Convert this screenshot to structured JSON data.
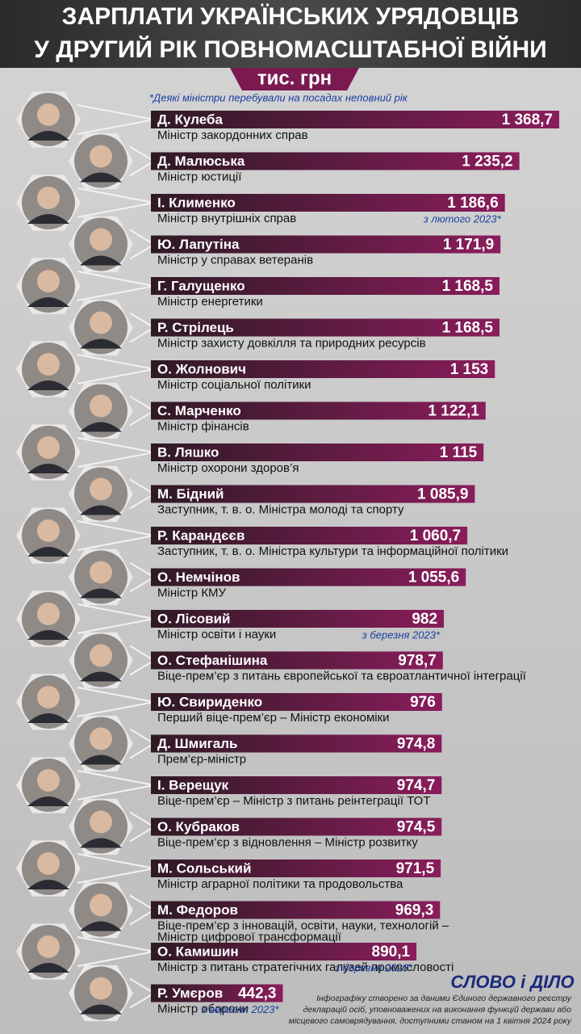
{
  "chart_data": {
    "type": "bar",
    "title": [
      "ЗАРПЛАТИ УКРАЇНСЬКИХ УРЯДОВЦІВ",
      "У ДРУГИЙ РІК ПОВНОМАСШТАБНОЇ ВІЙНИ"
    ],
    "unit": "тис. грн",
    "note": "*Деякі міністри перебували на посадах неповний рік",
    "color": "#8a1d5c",
    "categories": [
      "Д. Кулеба",
      "Д. Малюська",
      "І. Клименко",
      "Ю. Лапутіна",
      "Г. Галущенко",
      "Р. Стрілець",
      "О. Жолнович",
      "С. Марченко",
      "В. Ляшко",
      "М. Бідний",
      "Р. Карандєєв",
      "О. Немчінов",
      "О. Лісовий",
      "О. Стефанішина",
      "Ю. Свириденко",
      "Д. Шмигаль",
      "І. Верещук",
      "О. Кубраков",
      "М. Сольський",
      "М. Федоров",
      "О. Камишин",
      "Р. Умєров"
    ],
    "values": [
      1368.7,
      1235.2,
      1186.6,
      1171.9,
      1168.5,
      1168.5,
      1153,
      1122.1,
      1115,
      1085.9,
      1060.7,
      1055.6,
      982,
      978.7,
      976,
      974.8,
      974.7,
      974.5,
      971.5,
      969.3,
      890.1,
      442.3
    ],
    "value_labels": [
      "1 368,7",
      "1 235,2",
      "1 186,6",
      "1 171,9",
      "1 168,5",
      "1 168,5",
      "1 153",
      "1 122,1",
      "1 115",
      "1 085,9",
      "1 060,7",
      "1 055,6",
      "982",
      "978,7",
      "976",
      "974,8",
      "974,7",
      "974,5",
      "971,5",
      "969,3",
      "890,1",
      "442,3"
    ],
    "roles": [
      [
        "Міністр закордонних справ"
      ],
      [
        "Міністр юстиції"
      ],
      [
        "Міністр внутрішніх справ"
      ],
      [
        "Міністр у справах ветеранів"
      ],
      [
        "Міністр енергетики"
      ],
      [
        "Міністр захисту довкілля та природних ресурсів"
      ],
      [
        "Міністр соціальної політики"
      ],
      [
        "Міністр фінансів"
      ],
      [
        "Міністр охорони здоров’я"
      ],
      [
        "Заступник, т. в. о. Міністра молоді та спорту"
      ],
      [
        "Заступник, т. в. о. Міністра культури та інформаційної політики"
      ],
      [
        "Міністр КМУ"
      ],
      [
        "Міністр освіти і науки"
      ],
      [
        "Віце-прем’єр з питань європейської та євроатлантичної інтеграції"
      ],
      [
        "Перший віце-прем’єр – Міністр економіки"
      ],
      [
        "Прем’єр-міністр"
      ],
      [
        "Віце-прем’єр – Міністр з питань реінтеграції ТОТ"
      ],
      [
        "Віце-прем’єр з відновлення – Міністр розвитку"
      ],
      [
        "Міністр аграрної політики та продовольства"
      ],
      [
        "Віце-прем’єр з інновацій, освіти, науки, технологій –",
        "Міністр цифрової трансформації"
      ],
      [
        "Міністр з питань стратегічних галузей промисловості"
      ],
      [
        "Міністр оборони"
      ]
    ],
    "notes": [
      null,
      null,
      "з лютого 2023*",
      null,
      null,
      null,
      null,
      null,
      null,
      null,
      null,
      null,
      "з березня 2023*",
      null,
      null,
      null,
      null,
      null,
      null,
      null,
      "з березня 2023*",
      "з вересня 2023*"
    ],
    "logo": "СЛОВО і ДІЛО",
    "footer": [
      "Інфографіку створено за даними Єдиного державного реєстру",
      "декларацій осіб, уповноважених на виконання функцій держави або",
      "місцевого самоврядування, доступними станом на 1 квітня 2024 року"
    ]
  }
}
